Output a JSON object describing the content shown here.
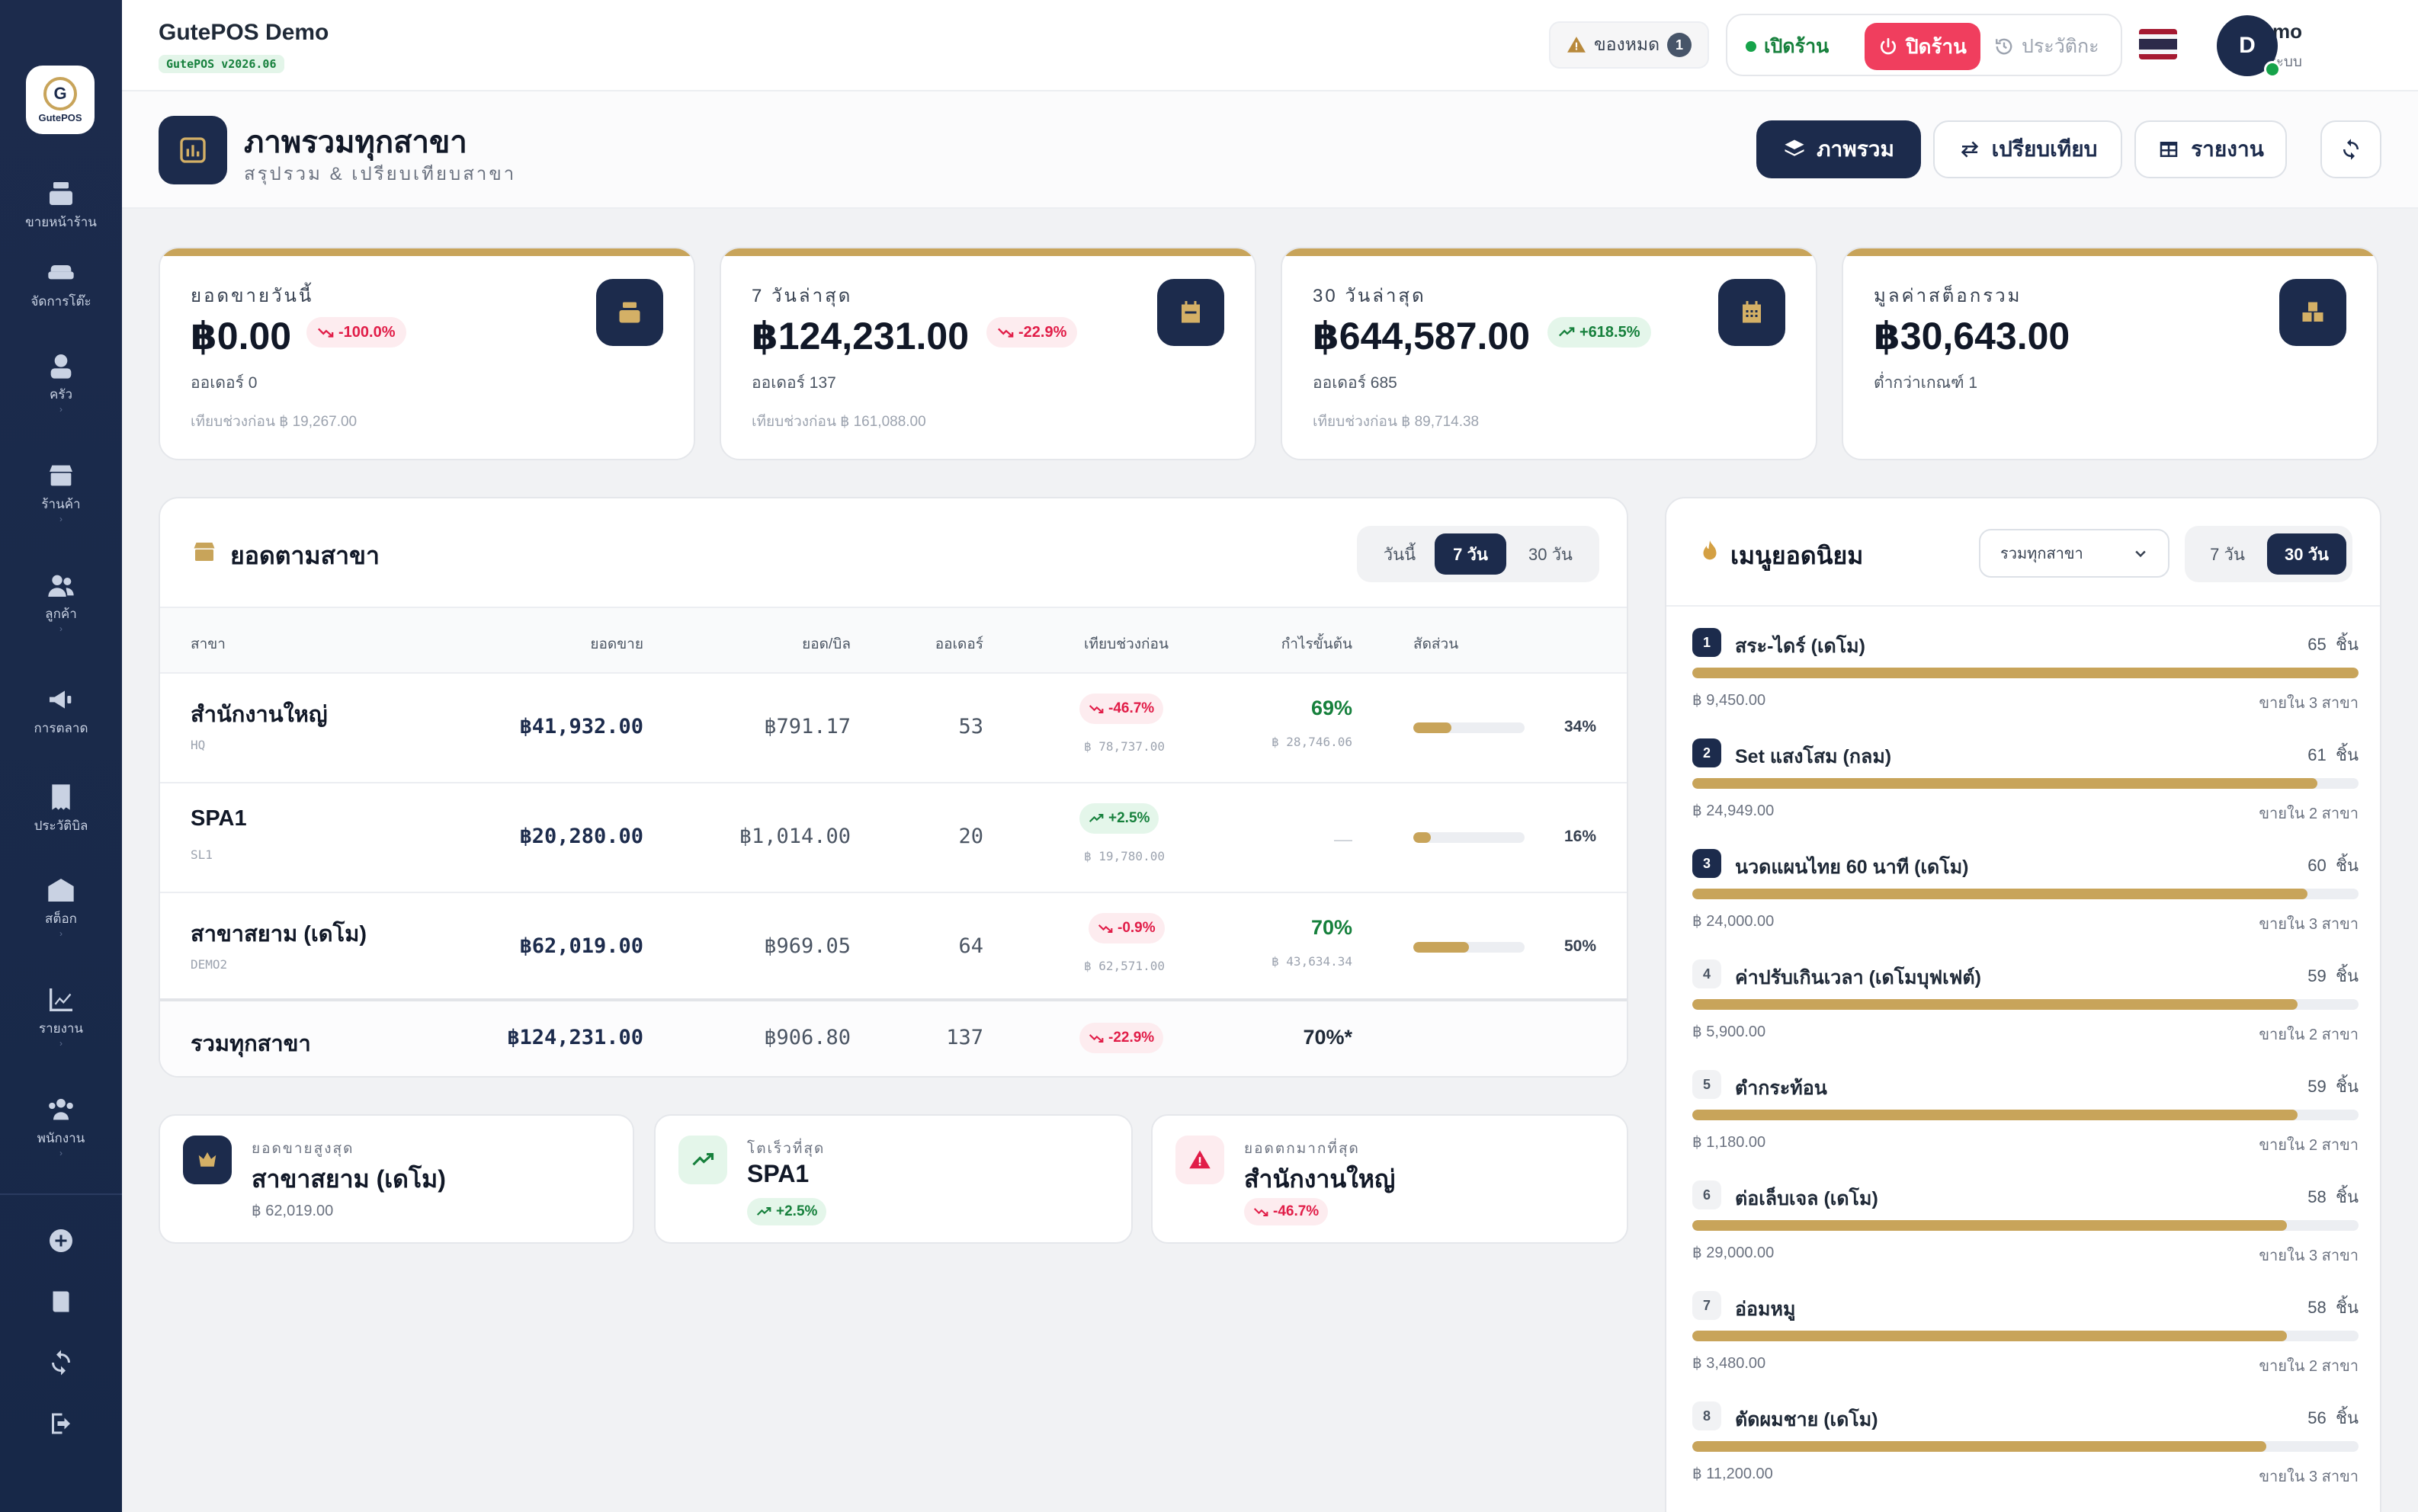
{
  "app": {
    "title": "GutePOS Demo",
    "version": "GutePOS v2026.06",
    "logo_text": "GutePOS"
  },
  "sidebar": {
    "items": [
      {
        "label": "ขายหน้าร้าน",
        "icon": "cash-register-icon"
      },
      {
        "label": "จัดการโต๊ะ",
        "icon": "sofa-icon"
      },
      {
        "label": "ครัว",
        "icon": "chef-icon"
      },
      {
        "label": "ร้านค้า",
        "icon": "store-icon"
      },
      {
        "label": "ลูกค้า",
        "icon": "users-icon"
      },
      {
        "label": "การตลาด",
        "icon": "megaphone-icon"
      },
      {
        "label": "ประวัติบิล",
        "icon": "receipt-icon"
      },
      {
        "label": "สต็อก",
        "icon": "warehouse-icon"
      },
      {
        "label": "รายงาน",
        "icon": "chart-line-icon"
      },
      {
        "label": "พนักงาน",
        "icon": "staff-icon"
      }
    ],
    "chevron": "›",
    "actions": [
      "plus-circle-icon",
      "book-icon",
      "sync-icon",
      "logout-icon"
    ]
  },
  "topbar": {
    "stock_label": "ของหมด",
    "stock_count": "1",
    "open_label": "เปิดร้าน",
    "close_label": "ปิดร้าน",
    "history_label": "ประวัติกะ",
    "user_name": "Demo",
    "user_role": "ผู้ดูแลระบบ",
    "avatar_letter": "D",
    "colors": {
      "close": "#f03e5e",
      "open": "#16803c",
      "accent": "#1c2b4c",
      "gold": "#c8a45a"
    }
  },
  "page": {
    "title": "ภาพรวมทุกสาขา",
    "subtitle": "สรุปรวม & เปรียบเทียบสาขา",
    "btn_overview": "ภาพรวม",
    "btn_compare": "เปรียบเทียบ",
    "btn_report": "รายงาน"
  },
  "kpis": [
    {
      "label": "ยอดขายวันนี้",
      "value": "฿0.00",
      "delta": "-100.0%",
      "trend": "neg",
      "sub": "ออเดอร์ 0",
      "compare": "เทียบช่วงก่อน ฿ 19,267.00",
      "icon": "cash-register-icon"
    },
    {
      "label": "7 วันล่าสุด",
      "value": "฿124,231.00",
      "delta": "-22.9%",
      "trend": "neg",
      "sub": "ออเดอร์ 137",
      "compare": "เทียบช่วงก่อน ฿ 161,088.00",
      "icon": "calendar-week-icon"
    },
    {
      "label": "30 วันล่าสุด",
      "value": "฿644,587.00",
      "delta": "+618.5%",
      "trend": "pos",
      "sub": "ออเดอร์ 685",
      "compare": "เทียบช่วงก่อน ฿ 89,714.38",
      "icon": "calendar-month-icon"
    },
    {
      "label": "มูลค่าสต็อกรวม",
      "value": "฿30,643.00",
      "delta": "",
      "trend": "",
      "sub": "ต่ำกว่าเกณฑ์ 1",
      "compare": "",
      "icon": "boxes-icon"
    }
  ],
  "branches": {
    "title": "ยอดตามสาขา",
    "tabs": [
      "วันนี้",
      "7 วัน",
      "30 วัน"
    ],
    "active_tab": "7 วัน",
    "headers": [
      "สาขา",
      "ยอดขาย",
      "ยอด/บิล",
      "ออเดอร์",
      "เทียบช่วงก่อน",
      "กำไรขั้นต้น",
      "สัดส่วน"
    ],
    "rows": [
      {
        "name": "สำนักงานใหญ่",
        "code": "HQ",
        "sales": "฿41,932.00",
        "per_bill": "฿791.17",
        "orders": "53",
        "delta": "-46.7%",
        "trend": "neg",
        "prev": "฿ 78,737.00",
        "gp": "69%",
        "gp_value": "฿ 28,746.06",
        "share": "34%",
        "share_value": 34
      },
      {
        "name": "SPA1",
        "code": "SL1",
        "sales": "฿20,280.00",
        "per_bill": "฿1,014.00",
        "orders": "20",
        "delta": "+2.5%",
        "trend": "pos",
        "prev": "฿ 19,780.00",
        "gp": "",
        "gp_value": "",
        "share": "16%",
        "share_value": 16
      },
      {
        "name": "สาขาสยาม (เดโม)",
        "code": "DEMO2",
        "sales": "฿62,019.00",
        "per_bill": "฿969.05",
        "orders": "64",
        "delta": "-0.9%",
        "trend": "neg",
        "prev": "฿ 62,571.00",
        "gp": "70%",
        "gp_value": "฿ 43,634.34",
        "share": "50%",
        "share_value": 50
      }
    ],
    "total": {
      "label": "รวมทุกสาขา",
      "sales": "฿124,231.00",
      "per_bill": "฿906.80",
      "orders": "137",
      "delta": "-22.9%",
      "gp": "70%*"
    }
  },
  "highlights": [
    {
      "label": "ยอดขายสูงสุด",
      "name": "สาขาสยาม (เดโม)",
      "sub": "฿ 62,019.00",
      "icon": "crown-icon"
    },
    {
      "label": "โตเร็วที่สุด",
      "name": "SPA1",
      "delta": "+2.5%",
      "icon": "trend-up-icon"
    },
    {
      "label": "ยอดตกมากที่สุด",
      "name": "สำนักงานใหญ่",
      "delta": "-46.7%",
      "icon": "warning-icon"
    }
  ],
  "popular": {
    "title": "เมนูยอดนิยม",
    "select_value": "รวมทุกสาขา",
    "tabs": [
      "7 วัน",
      "30 วัน"
    ],
    "active_tab": "30 วัน",
    "unit": "ชิ้น",
    "items": [
      {
        "rank": "1",
        "name": "สระ-ไดร์ (เดโม)",
        "qty": "65",
        "rev": "฿ 9,450.00",
        "branches": "ขายใน 3 สาขา",
        "ratio": 1.0
      },
      {
        "rank": "2",
        "name": "Set แสงโสม (กลม)",
        "qty": "61",
        "rev": "฿ 24,949.00",
        "branches": "ขายใน 2 สาขา",
        "ratio": 0.938
      },
      {
        "rank": "3",
        "name": "นวดแผนไทย 60 นาที (เดโม)",
        "qty": "60",
        "rev": "฿ 24,000.00",
        "branches": "ขายใน 3 สาขา",
        "ratio": 0.923
      },
      {
        "rank": "4",
        "name": "ค่าปรับเกินเวลา (เดโมบุฟเฟต์)",
        "qty": "59",
        "rev": "฿ 5,900.00",
        "branches": "ขายใน 2 สาขา",
        "ratio": 0.908
      },
      {
        "rank": "5",
        "name": "ตำกระท้อน",
        "qty": "59",
        "rev": "฿ 1,180.00",
        "branches": "ขายใน 2 สาขา",
        "ratio": 0.908
      },
      {
        "rank": "6",
        "name": "ต่อเล็บเจล (เดโม)",
        "qty": "58",
        "rev": "฿ 29,000.00",
        "branches": "ขายใน 3 สาขา",
        "ratio": 0.892
      },
      {
        "rank": "7",
        "name": "อ่อมหมู",
        "qty": "58",
        "rev": "฿ 3,480.00",
        "branches": "ขายใน 2 สาขา",
        "ratio": 0.892
      },
      {
        "rank": "8",
        "name": "ตัดผมชาย (เดโม)",
        "qty": "56",
        "rev": "฿ 11,200.00",
        "branches": "ขายใน 3 สาขา",
        "ratio": 0.862
      }
    ]
  }
}
